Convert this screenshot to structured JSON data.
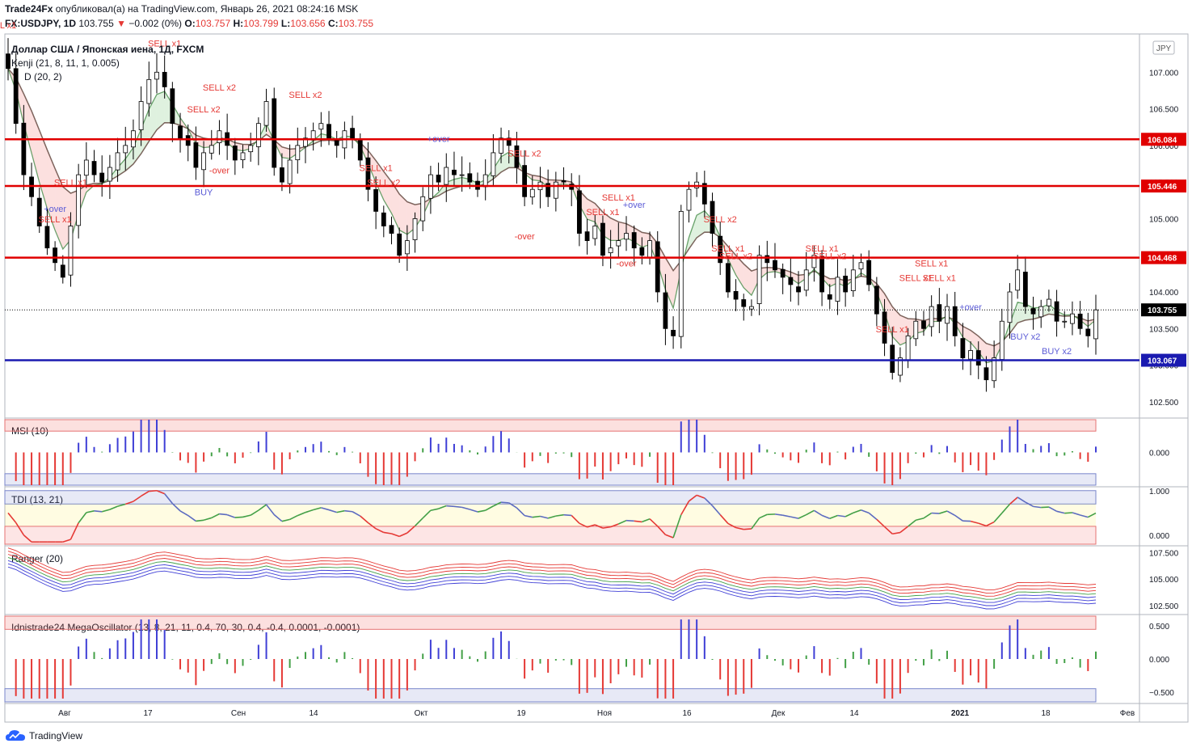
{
  "header": {
    "author": "Trade24Fx",
    "published": "опубликовал(а) на TradingView.com, Январь 26, 2021 08:24:16 MSK",
    "symbol": "FX:USDJPY, 1D",
    "last": "103.755",
    "change": "−0.002 (0%)",
    "o_label": "O:",
    "o": "103.757",
    "h_label": "H:",
    "h": "103.799",
    "l_label": "L:",
    "l": "103.656",
    "c_label": "C:",
    "c": "103.755"
  },
  "legend": {
    "title": "Доллар США / Японская иена, 1Д, FXCM",
    "kenji": "Kenji (21, 8, 11, 1, 0.005)",
    "ind2": "D (20, 2)"
  },
  "currency_button": "JPY",
  "footer": {
    "brand": "TradingView"
  },
  "chart_data": {
    "type": "candlestick",
    "x_ticks": [
      "Авг",
      "17",
      "Сен",
      "14",
      "Окт",
      "19",
      "Ноя",
      "16",
      "Дек",
      "14",
      "2021",
      "18",
      "Фев"
    ],
    "main": {
      "y_ticks": [
        "107.000",
        "106.500",
        "106.000",
        "105.500",
        "105.000",
        "104.500",
        "104.000",
        "103.500",
        "103.000",
        "102.500"
      ],
      "ylim": [
        102.3,
        107.5
      ],
      "levels": [
        {
          "value": 106.084,
          "label": "106.084",
          "color": "#e00000"
        },
        {
          "value": 105.446,
          "label": "105.446",
          "color": "#e00000"
        },
        {
          "value": 104.468,
          "label": "104.468",
          "color": "#e00000"
        },
        {
          "value": 103.067,
          "label": "103.067",
          "color": "#1a1ab0"
        }
      ],
      "last_price": "103.755",
      "closes": [
        107.05,
        106.3,
        105.6,
        105.3,
        104.9,
        104.6,
        104.4,
        104.2,
        104.9,
        105.6,
        105.8,
        105.6,
        105.5,
        105.7,
        105.9,
        106.0,
        106.2,
        106.6,
        106.9,
        107.0,
        106.8,
        106.3,
        106.1,
        106.0,
        105.7,
        105.9,
        106.0,
        106.2,
        106.0,
        105.8,
        105.9,
        106.0,
        106.3,
        106.6,
        105.7,
        105.5,
        105.8,
        106.0,
        106.1,
        106.2,
        106.3,
        106.1,
        106.0,
        106.2,
        106.1,
        105.8,
        105.4,
        105.1,
        104.9,
        104.8,
        104.5,
        104.7,
        105.0,
        105.3,
        105.6,
        105.5,
        105.7,
        105.6,
        105.6,
        105.5,
        105.4,
        105.6,
        105.9,
        106.1,
        106.0,
        105.7,
        105.3,
        105.4,
        105.5,
        105.3,
        105.5,
        105.5,
        105.4,
        104.8,
        104.7,
        104.9,
        104.5,
        104.6,
        104.7,
        104.8,
        104.6,
        104.5,
        104.7,
        104.0,
        103.5,
        103.4,
        105.1,
        105.4,
        105.5,
        105.2,
        104.8,
        104.4,
        104.0,
        103.9,
        103.8,
        103.8,
        104.5,
        104.4,
        104.3,
        104.2,
        104.1,
        104.0,
        104.3,
        104.5,
        104.0,
        103.9,
        104.2,
        104.0,
        104.3,
        104.4,
        104.1,
        103.7,
        103.3,
        102.9,
        103.1,
        103.4,
        103.6,
        103.5,
        103.8,
        103.6,
        103.8,
        103.4,
        103.1,
        103.2,
        103.0,
        102.8,
        103.1,
        103.6,
        104.0,
        104.3,
        103.8,
        103.7,
        103.8,
        103.9,
        103.6,
        103.6,
        103.7,
        103.5,
        103.4,
        103.755
      ]
    },
    "panels": [
      {
        "name": "MSI (10)",
        "y_ticks": [
          "0.000"
        ],
        "ylim": [
          -1,
          1
        ]
      },
      {
        "name": "TDI (13, 21)",
        "y_ticks": [
          "1.000",
          "0.000"
        ],
        "ylim": [
          -0.2,
          1.05
        ]
      },
      {
        "name": "Ranger (20)",
        "y_ticks": [
          "107.500",
          "105.000",
          "102.500"
        ],
        "ylim": [
          101.8,
          108.0
        ]
      },
      {
        "name": "Idnistrade24 MegaOscillator (13, 8, 21, 11, 0.4, 70, 30, 0.4, -0.4, 0.0001, -0.0001)",
        "y_ticks": [
          "0.500",
          "0.000",
          "−0.500"
        ],
        "ylim": [
          -0.65,
          0.65
        ]
      }
    ],
    "annotations": [
      {
        "text": "L x1",
        "i": 0,
        "color": "#e53935"
      },
      {
        "text": "SELL x1",
        "i": 6,
        "color": "#e53935"
      },
      {
        "text": "+over",
        "i": 6,
        "color": "#5b5bd6"
      },
      {
        "text": "SELL x1",
        "i": 8,
        "color": "#e53935"
      },
      {
        "text": "SELL x1",
        "i": 20,
        "color": "#e53935"
      },
      {
        "text": "SELL x2",
        "i": 25,
        "color": "#e53935"
      },
      {
        "text": "SELL x2",
        "i": 27,
        "color": "#e53935"
      },
      {
        "text": "BUY",
        "i": 25,
        "color": "#5b5bd6"
      },
      {
        "text": "-over",
        "i": 27,
        "color": "#e53935"
      },
      {
        "text": "SELL x2",
        "i": 38,
        "color": "#e53935"
      },
      {
        "text": "SELL x2",
        "i": 48,
        "color": "#e53935"
      },
      {
        "text": "SELL x1",
        "i": 47,
        "color": "#e53935"
      },
      {
        "text": "+over",
        "i": 55,
        "color": "#5b5bd6"
      },
      {
        "text": "SELL x2",
        "i": 66,
        "color": "#e53935"
      },
      {
        "text": "-over",
        "i": 66,
        "color": "#e53935"
      },
      {
        "text": "SELL x1",
        "i": 76,
        "color": "#e53935"
      },
      {
        "text": "SELL x1",
        "i": 78,
        "color": "#e53935"
      },
      {
        "text": "-over",
        "i": 79,
        "color": "#e53935"
      },
      {
        "text": "+over",
        "i": 80,
        "color": "#5b5bd6"
      },
      {
        "text": "SELL x2",
        "i": 91,
        "color": "#e53935"
      },
      {
        "text": "SELL x1",
        "i": 92,
        "color": "#e53935"
      },
      {
        "text": "SELL x2",
        "i": 93,
        "color": "#e53935"
      },
      {
        "text": "SELL x1",
        "i": 104,
        "color": "#e53935"
      },
      {
        "text": "SELL x2",
        "i": 105,
        "color": "#e53935"
      },
      {
        "text": "SELL x1",
        "i": 113,
        "color": "#e53935"
      },
      {
        "text": "SELL x1",
        "i": 116,
        "color": "#e53935"
      },
      {
        "text": "SELL x1",
        "i": 118,
        "color": "#e53935"
      },
      {
        "text": "SELL x1",
        "i": 119,
        "color": "#e53935"
      },
      {
        "text": "+over",
        "i": 123,
        "color": "#5b5bd6"
      },
      {
        "text": "BUY x2",
        "i": 130,
        "color": "#5b5bd6"
      },
      {
        "text": "BUY x2",
        "i": 134,
        "color": "#5b5bd6"
      }
    ]
  }
}
